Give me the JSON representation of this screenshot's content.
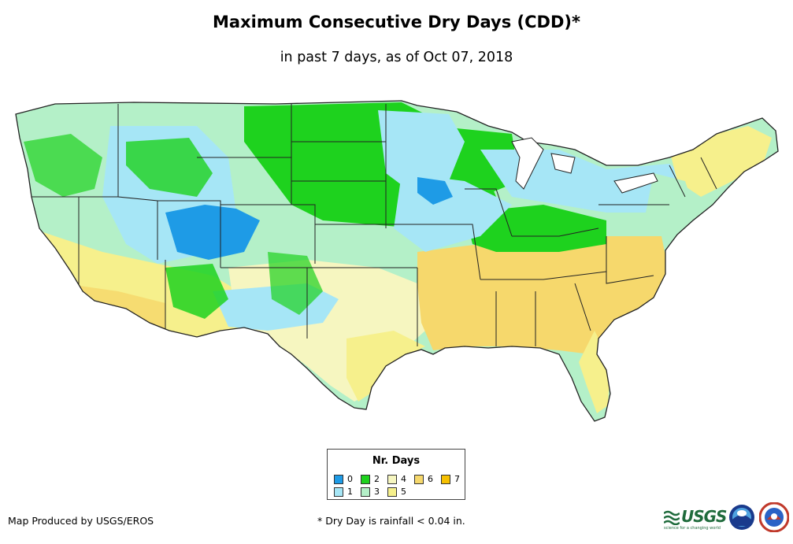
{
  "title": "Maximum Consecutive Dry Days (CDD)*",
  "subtitle": "in past 7 days, as of Oct 07, 2018",
  "legend": {
    "title": "Nr. Days",
    "items": [
      {
        "label": "0",
        "color": "#1e9be6"
      },
      {
        "label": "1",
        "color": "#a6e6f6"
      },
      {
        "label": "2",
        "color": "#1ed21e"
      },
      {
        "label": "3",
        "color": "#b4f0c8"
      },
      {
        "label": "4",
        "color": "#f6f6c0"
      },
      {
        "label": "5",
        "color": "#f6f08c"
      },
      {
        "label": "6",
        "color": "#f6d86c"
      },
      {
        "label": "7",
        "color": "#f6c000"
      }
    ]
  },
  "footer": {
    "credit": "Map Produced by USGS/EROS",
    "note": "* Dry Day is rainfall < 0.04 in."
  },
  "logos": {
    "usgs": "USGS",
    "usgs_tagline": "science for a changing world",
    "noaa": "noaa",
    "nws": "NWS"
  },
  "map": {
    "subject": "Contiguous United States",
    "dominant_regions": [
      {
        "region": "Northwest / Great Basin",
        "days": "1-3"
      },
      {
        "region": "Northern Plains / Upper Midwest",
        "days": "2"
      },
      {
        "region": "Colorado / Utah",
        "days": "0-1"
      },
      {
        "region": "Southwest / California",
        "days": "4-5"
      },
      {
        "region": "Southeast / Gulf Coast",
        "days": "5-6"
      },
      {
        "region": "Northeast",
        "days": "1-5"
      }
    ]
  }
}
